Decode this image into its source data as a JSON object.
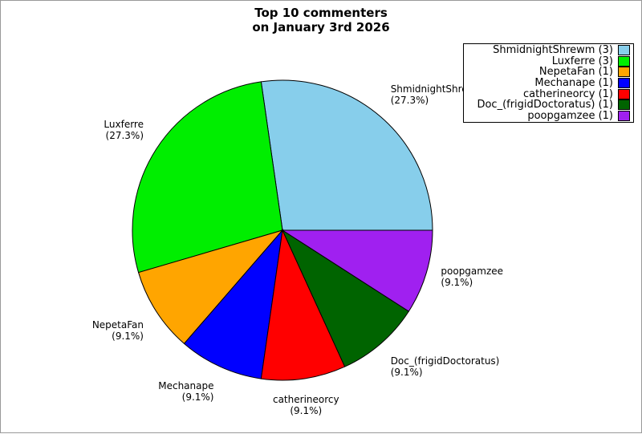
{
  "window": {
    "background": "#ffffff",
    "border_color": "#999999"
  },
  "title": {
    "line1": "Top 10 commenters",
    "line2": "on January 3rd 2026"
  },
  "chart_data": {
    "type": "pie",
    "title": "Top 10 commenters on January 3rd 2026",
    "total": 11,
    "start_angle_deg": 0,
    "direction": "counterclockwise",
    "legend_position": "upper right",
    "label_distance": 1.1,
    "slices": [
      {
        "label": "ShmidnightShrewm",
        "value": 3,
        "pct": "27.3%",
        "pct_label": "(27.3%)",
        "legend_label": "ShmidnightShrewm (3)",
        "color": "#87CEEB"
      },
      {
        "label": "Luxferre",
        "value": 3,
        "pct": "27.3%",
        "pct_label": "(27.3%)",
        "legend_label": "Luxferre (3)",
        "color": "#00EE00"
      },
      {
        "label": "NepetaFan",
        "value": 1,
        "pct": "9.1%",
        "pct_label": "(9.1%)",
        "legend_label": "NepetaFan (1)",
        "color": "#FFA500"
      },
      {
        "label": "Mechanape",
        "value": 1,
        "pct": "9.1%",
        "pct_label": "(9.1%)",
        "legend_label": "Mechanape (1)",
        "color": "#0000FF"
      },
      {
        "label": "catherineorcy",
        "value": 1,
        "pct": "9.1%",
        "pct_label": "(9.1%)",
        "legend_label": "catherineorcy (1)",
        "color": "#FF0000"
      },
      {
        "label": "Doc_(frigidDoctoratus)",
        "value": 1,
        "pct": "9.1%",
        "pct_label": "(9.1%)",
        "legend_label": "Doc_(frigidDoctoratus) (1)",
        "color": "#006400"
      },
      {
        "label": "poopgamzee",
        "value": 1,
        "pct": "9.1%",
        "pct_label": "(9.1%)",
        "legend_label": "poopgamzee (1)",
        "color": "#A020F0"
      }
    ]
  }
}
